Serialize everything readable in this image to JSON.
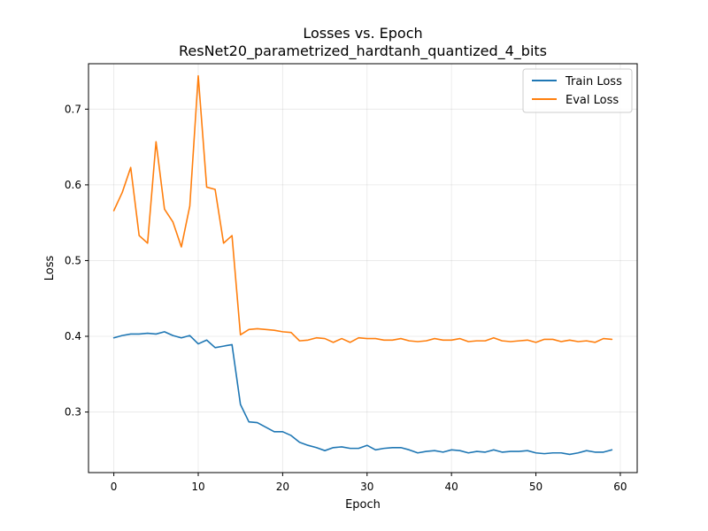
{
  "chart_data": {
    "type": "line",
    "title": "Losses vs. Epoch",
    "subtitle": "ResNet20_parametrized_hardtanh_quantized_4_bits",
    "xlabel": "Epoch",
    "ylabel": "Loss",
    "xlim": [
      -3,
      62
    ],
    "ylim": [
      0.22,
      0.76
    ],
    "x_ticks": [
      0,
      10,
      20,
      30,
      40,
      50,
      60
    ],
    "x_tick_labels": [
      "0",
      "10",
      "20",
      "30",
      "40",
      "50",
      "60"
    ],
    "y_ticks": [
      0.3,
      0.4,
      0.5,
      0.6,
      0.7
    ],
    "y_tick_labels": [
      "0.3",
      "0.4",
      "0.5",
      "0.6",
      "0.7"
    ],
    "grid": true,
    "legend_position": "top-right",
    "x": [
      0,
      1,
      2,
      3,
      4,
      5,
      6,
      7,
      8,
      9,
      10,
      11,
      12,
      13,
      14,
      15,
      16,
      17,
      18,
      19,
      20,
      21,
      22,
      23,
      24,
      25,
      26,
      27,
      28,
      29,
      30,
      31,
      32,
      33,
      34,
      35,
      36,
      37,
      38,
      39,
      40,
      41,
      42,
      43,
      44,
      45,
      46,
      47,
      48,
      49,
      50,
      51,
      52,
      53,
      54,
      55,
      56,
      57,
      58,
      59
    ],
    "series": [
      {
        "name": "Train Loss",
        "color": "#1f77b4",
        "values": [
          0.398,
          0.401,
          0.403,
          0.403,
          0.404,
          0.403,
          0.406,
          0.401,
          0.398,
          0.401,
          0.39,
          0.395,
          0.385,
          0.387,
          0.389,
          0.31,
          0.287,
          0.286,
          0.28,
          0.274,
          0.274,
          0.269,
          0.26,
          0.256,
          0.253,
          0.249,
          0.253,
          0.254,
          0.252,
          0.252,
          0.256,
          0.25,
          0.252,
          0.253,
          0.253,
          0.25,
          0.246,
          0.248,
          0.249,
          0.247,
          0.25,
          0.249,
          0.246,
          0.248,
          0.247,
          0.25,
          0.247,
          0.248,
          0.248,
          0.249,
          0.246,
          0.245,
          0.246,
          0.246,
          0.244,
          0.246,
          0.249,
          0.247,
          0.247,
          0.25
        ]
      },
      {
        "name": "Eval Loss",
        "color": "#ff7f0e",
        "values": [
          0.566,
          0.59,
          0.623,
          0.533,
          0.523,
          0.657,
          0.568,
          0.551,
          0.518,
          0.572,
          0.744,
          0.597,
          0.594,
          0.523,
          0.533,
          0.402,
          0.409,
          0.41,
          0.409,
          0.408,
          0.406,
          0.405,
          0.394,
          0.395,
          0.398,
          0.397,
          0.392,
          0.397,
          0.392,
          0.398,
          0.397,
          0.397,
          0.395,
          0.395,
          0.397,
          0.394,
          0.393,
          0.394,
          0.397,
          0.395,
          0.395,
          0.397,
          0.393,
          0.394,
          0.394,
          0.398,
          0.394,
          0.393,
          0.394,
          0.395,
          0.392,
          0.396,
          0.396,
          0.393,
          0.395,
          0.393,
          0.394,
          0.392,
          0.397,
          0.396
        ]
      }
    ]
  }
}
